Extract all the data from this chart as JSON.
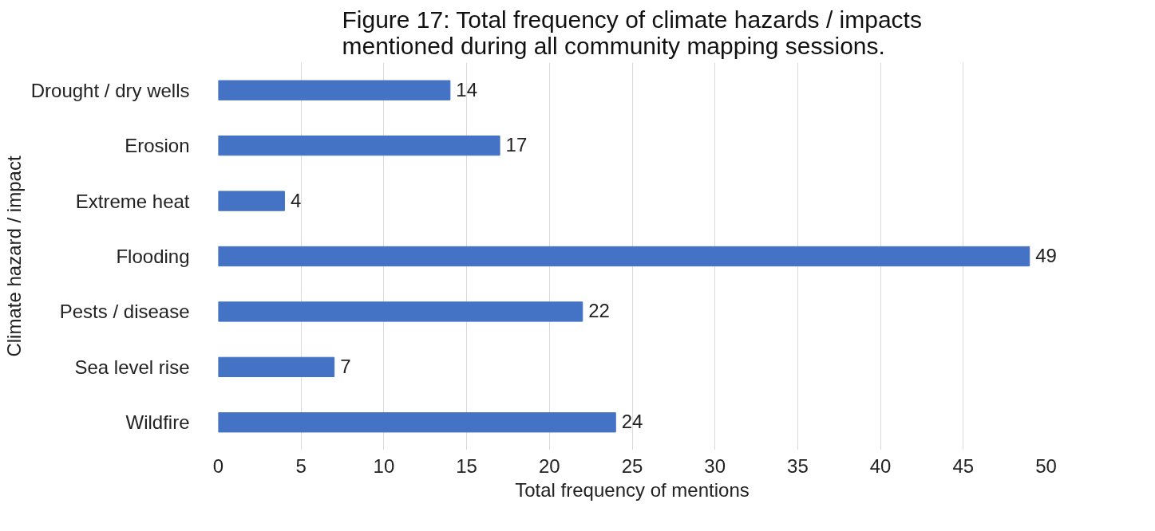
{
  "chart_data": {
    "type": "bar",
    "orientation": "horizontal",
    "title": "Figure 17: Total frequency of climate hazards / impacts mentioned during all community mapping sessions.",
    "xlabel": "Total frequency of mentions",
    "ylabel": "Climate hazard / impact",
    "categories": [
      "Drought / dry wells",
      "Erosion",
      "Extreme heat",
      "Flooding",
      "Pests / disease",
      "Sea level rise",
      "Wildfire"
    ],
    "values": [
      14,
      17,
      4,
      49,
      22,
      7,
      24
    ],
    "color": "#4472c4",
    "xlim": [
      0,
      50
    ],
    "xticks": [
      0,
      5,
      10,
      15,
      20,
      25,
      30,
      35,
      40,
      45,
      50
    ],
    "grid": "x",
    "data_labels": true
  }
}
